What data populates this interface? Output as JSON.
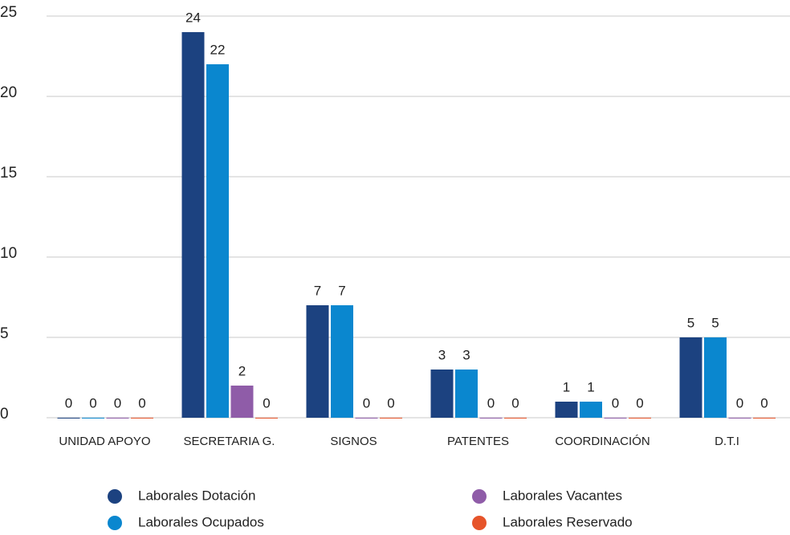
{
  "chart_data": {
    "type": "bar",
    "categories": [
      "UNIDAD APOYO",
      "SECRETARIA G.",
      "SIGNOS",
      "PATENTES",
      "COORDINACIÓN",
      "D.T.I"
    ],
    "series": [
      {
        "name": "Laborales Dotación",
        "color": "#1c4280",
        "values": [
          0,
          24,
          7,
          3,
          1,
          5
        ]
      },
      {
        "name": "Laborales Ocupados",
        "color": "#0a87cf",
        "values": [
          0,
          22,
          7,
          3,
          1,
          5
        ]
      },
      {
        "name": "Laborales Vacantes",
        "color": "#8f5ca8",
        "values": [
          0,
          2,
          0,
          0,
          0,
          0
        ]
      },
      {
        "name": "Laborales Reservado",
        "color": "#e6542a",
        "values": [
          0,
          0,
          0,
          0,
          0,
          0
        ]
      }
    ],
    "ylim": [
      0,
      25
    ],
    "yticks": [
      0,
      5,
      10,
      15,
      20,
      25
    ],
    "grid": true
  }
}
